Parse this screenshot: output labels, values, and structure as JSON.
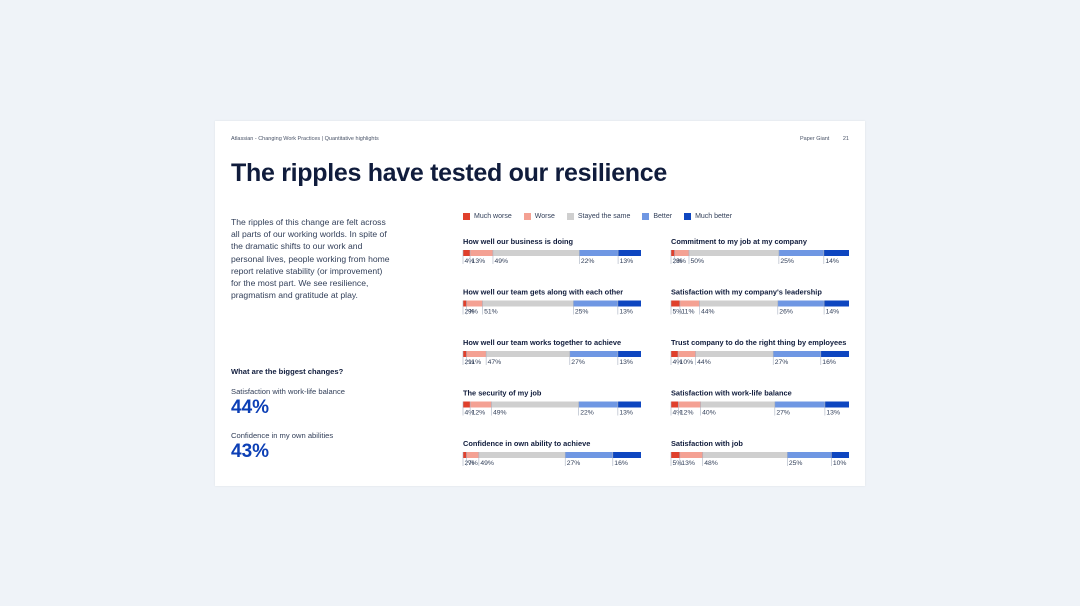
{
  "header": {
    "left": "Atlassian - Changing Work Practices | Quantitative highlights",
    "brand": "Paper Giant",
    "page_number": "21"
  },
  "title": "The ripples have tested our resilience",
  "intro": "The ripples of this change are felt across all parts of our working worlds. In spite of the dramatic shifts to our work and personal lives, people working from home report relative stability (or improvement) for the most part. We see resilience, pragmatism and gratitude at play.",
  "changes": {
    "heading": "What are the biggest changes?",
    "items": [
      {
        "label": "Satisfaction with work-life balance",
        "value": "44%"
      },
      {
        "label": "Confidence in my own abilities",
        "value": "43%"
      }
    ]
  },
  "colors": {
    "much_worse": "#e0402c",
    "worse": "#f4a193",
    "same": "#cfcfcf",
    "better": "#6f97e3",
    "much_better": "#0e46c0"
  },
  "chart_data": {
    "type": "bar",
    "stacked": true,
    "orientation": "horizontal",
    "legend": [
      "Much worse",
      "Worse",
      "Stayed the same",
      "Better",
      "Much better"
    ],
    "legend_position": "top",
    "charts": [
      {
        "title": "How well our business is doing",
        "values": [
          4,
          13,
          49,
          22,
          13
        ]
      },
      {
        "title": "How well our team gets along with each other",
        "values": [
          2,
          9,
          51,
          25,
          13
        ]
      },
      {
        "title": "How well our team works together to achieve",
        "values": [
          2,
          11,
          47,
          27,
          13
        ]
      },
      {
        "title": "The security of my job",
        "values": [
          4,
          12,
          49,
          22,
          13
        ]
      },
      {
        "title": "Confidence in own ability to achieve",
        "values": [
          2,
          7,
          49,
          27,
          16
        ]
      },
      {
        "title": "Commitment to my job at my company",
        "values": [
          2,
          8,
          50,
          25,
          14
        ]
      },
      {
        "title": "Satisfaction with my company's leadership",
        "values": [
          5,
          11,
          44,
          26,
          14
        ]
      },
      {
        "title": "Trust company to do the right thing by employees",
        "values": [
          4,
          10,
          44,
          27,
          16
        ]
      },
      {
        "title": "Satisfaction with work-life balance",
        "values": [
          4,
          12,
          40,
          27,
          13
        ]
      },
      {
        "title": "Satisfaction with job",
        "values": [
          5,
          13,
          48,
          25,
          10
        ]
      }
    ]
  }
}
